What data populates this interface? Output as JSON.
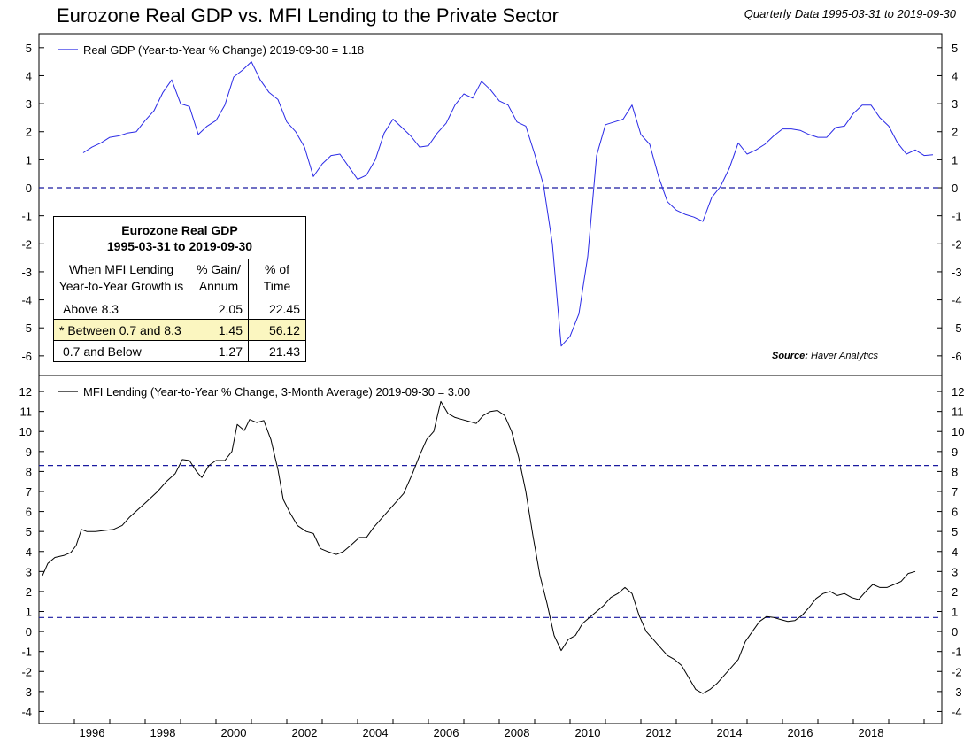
{
  "title": "Eurozone Real GDP vs. MFI Lending to the Private Sector",
  "subtitle": "Quarterly Data 1995-03-31 to 2019-09-30",
  "source": {
    "label": "Source:",
    "value": "Haver Analytics"
  },
  "colors": {
    "gdp_line": "#2a2ae6",
    "mfi_line": "#000000",
    "reference_line": "#1a1aa0"
  },
  "stats_table": {
    "title_line1": "Eurozone Real GDP",
    "title_line2": "1995-03-31 to 2019-09-30",
    "col1_line1": "When MFI Lending",
    "col1_line2": "Year-to-Year Growth is",
    "col2_line1": "% Gain/",
    "col2_line2": "Annum",
    "col3_line1": "% of",
    "col3_line2": "Time",
    "rows": [
      {
        "label": "Above 8.3",
        "gain": "2.05",
        "time": "22.45",
        "highlight": false
      },
      {
        "label": "* Between 0.7 and 8.3",
        "gain": "1.45",
        "time": "56.12",
        "highlight": true
      },
      {
        "label": "0.7 and Below",
        "gain": "1.27",
        "time": "21.43",
        "highlight": false
      }
    ]
  },
  "chart_data": [
    {
      "type": "line",
      "legend": "Real GDP (Year-to-Year % Change) 2019-09-30 = 1.18",
      "legend_position": "top-left",
      "ylim": [
        -6.7,
        5.5
      ],
      "yticks": [
        "5",
        "4",
        "3",
        "2",
        "1",
        "0",
        "-1",
        "-2",
        "-3",
        "-4",
        "-5",
        "-6"
      ],
      "reference_lines": [
        0
      ],
      "series": [
        {
          "values": [
            [
              1996.25,
              1.25
            ],
            [
              1996.5,
              1.45
            ],
            [
              1996.75,
              1.6
            ],
            [
              1997.0,
              1.8
            ],
            [
              1997.25,
              1.85
            ],
            [
              1997.5,
              1.95
            ],
            [
              1997.75,
              2.0
            ],
            [
              1998.0,
              2.4
            ],
            [
              1998.25,
              2.75
            ],
            [
              1998.5,
              3.4
            ],
            [
              1998.75,
              3.85
            ],
            [
              1999.0,
              3.0
            ],
            [
              1999.25,
              2.9
            ],
            [
              1999.5,
              1.9
            ],
            [
              1999.75,
              2.2
            ],
            [
              2000.0,
              2.4
            ],
            [
              2000.25,
              2.95
            ],
            [
              2000.5,
              3.95
            ],
            [
              2000.75,
              4.2
            ],
            [
              2001.0,
              4.5
            ],
            [
              2001.25,
              3.85
            ],
            [
              2001.5,
              3.4
            ],
            [
              2001.75,
              3.15
            ],
            [
              2002.0,
              2.35
            ],
            [
              2002.25,
              2.0
            ],
            [
              2002.5,
              1.45
            ],
            [
              2002.75,
              0.4
            ],
            [
              2003.0,
              0.85
            ],
            [
              2003.25,
              1.15
            ],
            [
              2003.5,
              1.2
            ],
            [
              2003.75,
              0.75
            ],
            [
              2004.0,
              0.3
            ],
            [
              2004.25,
              0.45
            ],
            [
              2004.5,
              1.0
            ],
            [
              2004.75,
              1.95
            ],
            [
              2005.0,
              2.45
            ],
            [
              2005.25,
              2.15
            ],
            [
              2005.5,
              1.85
            ],
            [
              2005.75,
              1.45
            ],
            [
              2006.0,
              1.5
            ],
            [
              2006.25,
              1.95
            ],
            [
              2006.5,
              2.3
            ],
            [
              2006.75,
              2.95
            ],
            [
              2007.0,
              3.35
            ],
            [
              2007.25,
              3.2
            ],
            [
              2007.5,
              3.8
            ],
            [
              2007.75,
              3.5
            ],
            [
              2008.0,
              3.1
            ],
            [
              2008.25,
              2.95
            ],
            [
              2008.5,
              2.35
            ],
            [
              2008.75,
              2.2
            ],
            [
              2009.0,
              1.2
            ],
            [
              2009.25,
              0.1
            ],
            [
              2009.5,
              -2.0
            ],
            [
              2009.75,
              -5.65
            ],
            [
              2010.0,
              -5.3
            ],
            [
              2010.25,
              -4.5
            ],
            [
              2010.5,
              -2.45
            ],
            [
              2010.75,
              1.15
            ],
            [
              2011.0,
              2.25
            ],
            [
              2011.25,
              2.35
            ],
            [
              2011.5,
              2.45
            ],
            [
              2011.75,
              2.95
            ],
            [
              2012.0,
              1.9
            ],
            [
              2012.25,
              1.55
            ],
            [
              2012.5,
              0.4
            ],
            [
              2012.75,
              -0.5
            ],
            [
              2013.0,
              -0.8
            ],
            [
              2013.25,
              -0.95
            ],
            [
              2013.5,
              -1.05
            ],
            [
              2013.75,
              -1.2
            ],
            [
              2014.0,
              -0.35
            ],
            [
              2014.25,
              0.05
            ],
            [
              2014.5,
              0.7
            ],
            [
              2014.75,
              1.6
            ],
            [
              2015.0,
              1.2
            ],
            [
              2015.25,
              1.35
            ],
            [
              2015.5,
              1.55
            ],
            [
              2015.75,
              1.85
            ],
            [
              2016.0,
              2.1
            ],
            [
              2016.25,
              2.1
            ],
            [
              2016.5,
              2.05
            ],
            [
              2016.75,
              1.9
            ],
            [
              2017.0,
              1.8
            ],
            [
              2017.25,
              1.8
            ],
            [
              2017.5,
              2.15
            ],
            [
              2017.75,
              2.2
            ],
            [
              2018.0,
              2.65
            ],
            [
              2018.25,
              2.95
            ],
            [
              2018.5,
              2.95
            ],
            [
              2018.75,
              2.5
            ],
            [
              2019.0,
              2.2
            ],
            [
              2019.25,
              1.6
            ],
            [
              2019.5,
              1.2
            ],
            [
              2019.75,
              1.35
            ],
            [
              2020.0,
              1.15
            ],
            [
              2020.25,
              1.18
            ]
          ]
        }
      ]
    },
    {
      "type": "line",
      "legend": "MFI Lending (Year-to-Year % Change, 3-Month Average) 2019-09-30 = 3.00",
      "legend_position": "top-left",
      "ylim": [
        -4.6,
        12.8
      ],
      "yticks": [
        "12",
        "11",
        "10",
        "9",
        "8",
        "7",
        "6",
        "5",
        "4",
        "3",
        "2",
        "1",
        "0",
        "-1",
        "-2",
        "-3",
        "-4"
      ],
      "reference_lines": [
        8.3,
        0.7
      ],
      "xlim": [
        1995.0,
        2020.5
      ],
      "xticks": [
        "1996",
        "1998",
        "2000",
        "2002",
        "2004",
        "2006",
        "2008",
        "2010",
        "2012",
        "2014",
        "2016",
        "2018"
      ],
      "series": [
        {
          "values": [
            [
              1995.1,
              2.8
            ],
            [
              1995.25,
              3.4
            ],
            [
              1995.45,
              3.7
            ],
            [
              1995.7,
              3.8
            ],
            [
              1995.9,
              3.95
            ],
            [
              1996.05,
              4.3
            ],
            [
              1996.2,
              5.1
            ],
            [
              1996.35,
              5.0
            ],
            [
              1996.6,
              5.0
            ],
            [
              1996.85,
              5.05
            ],
            [
              1997.1,
              5.1
            ],
            [
              1997.35,
              5.3
            ],
            [
              1997.55,
              5.7
            ],
            [
              1997.8,
              6.1
            ],
            [
              1998.05,
              6.5
            ],
            [
              1998.35,
              7.0
            ],
            [
              1998.6,
              7.5
            ],
            [
              1998.85,
              7.9
            ],
            [
              1999.05,
              8.6
            ],
            [
              1999.25,
              8.55
            ],
            [
              1999.45,
              8.0
            ],
            [
              1999.6,
              7.7
            ],
            [
              1999.8,
              8.3
            ],
            [
              2000.0,
              8.55
            ],
            [
              2000.25,
              8.55
            ],
            [
              2000.45,
              9.0
            ],
            [
              2000.6,
              10.35
            ],
            [
              2000.8,
              10.05
            ],
            [
              2000.95,
              10.6
            ],
            [
              2001.15,
              10.45
            ],
            [
              2001.35,
              10.55
            ],
            [
              2001.55,
              9.6
            ],
            [
              2001.75,
              8.1
            ],
            [
              2001.9,
              6.6
            ],
            [
              2002.1,
              5.9
            ],
            [
              2002.3,
              5.3
            ],
            [
              2002.55,
              5.0
            ],
            [
              2002.75,
              4.9
            ],
            [
              2002.95,
              4.15
            ],
            [
              2003.15,
              4.0
            ],
            [
              2003.4,
              3.85
            ],
            [
              2003.6,
              4.0
            ],
            [
              2003.8,
              4.3
            ],
            [
              2004.05,
              4.7
            ],
            [
              2004.25,
              4.7
            ],
            [
              2004.45,
              5.2
            ],
            [
              2004.65,
              5.6
            ],
            [
              2004.85,
              6.0
            ],
            [
              2005.1,
              6.5
            ],
            [
              2005.3,
              6.9
            ],
            [
              2005.55,
              7.9
            ],
            [
              2005.75,
              8.8
            ],
            [
              2005.95,
              9.6
            ],
            [
              2006.15,
              10.0
            ],
            [
              2006.35,
              11.5
            ],
            [
              2006.55,
              10.9
            ],
            [
              2006.75,
              10.7
            ],
            [
              2006.95,
              10.6
            ],
            [
              2007.15,
              10.5
            ],
            [
              2007.35,
              10.4
            ],
            [
              2007.55,
              10.8
            ],
            [
              2007.75,
              11.0
            ],
            [
              2007.95,
              11.05
            ],
            [
              2008.15,
              10.8
            ],
            [
              2008.35,
              10.0
            ],
            [
              2008.55,
              8.7
            ],
            [
              2008.75,
              7.0
            ],
            [
              2008.95,
              4.8
            ],
            [
              2009.15,
              2.8
            ],
            [
              2009.35,
              1.4
            ],
            [
              2009.55,
              -0.2
            ],
            [
              2009.75,
              -0.95
            ],
            [
              2009.95,
              -0.4
            ],
            [
              2010.15,
              -0.2
            ],
            [
              2010.35,
              0.4
            ],
            [
              2010.55,
              0.7
            ],
            [
              2010.75,
              1.0
            ],
            [
              2010.95,
              1.3
            ],
            [
              2011.15,
              1.7
            ],
            [
              2011.35,
              1.9
            ],
            [
              2011.55,
              2.2
            ],
            [
              2011.75,
              1.9
            ],
            [
              2011.95,
              0.8
            ],
            [
              2012.15,
              0.0
            ],
            [
              2012.35,
              -0.4
            ],
            [
              2012.55,
              -0.8
            ],
            [
              2012.75,
              -1.2
            ],
            [
              2012.95,
              -1.4
            ],
            [
              2013.15,
              -1.7
            ],
            [
              2013.35,
              -2.3
            ],
            [
              2013.55,
              -2.9
            ],
            [
              2013.75,
              -3.1
            ],
            [
              2013.95,
              -2.9
            ],
            [
              2014.15,
              -2.6
            ],
            [
              2014.35,
              -2.2
            ],
            [
              2014.55,
              -1.8
            ],
            [
              2014.75,
              -1.4
            ],
            [
              2014.95,
              -0.5
            ],
            [
              2015.15,
              0.0
            ],
            [
              2015.35,
              0.5
            ],
            [
              2015.55,
              0.75
            ],
            [
              2015.75,
              0.7
            ],
            [
              2015.95,
              0.6
            ],
            [
              2016.15,
              0.5
            ],
            [
              2016.35,
              0.55
            ],
            [
              2016.55,
              0.8
            ],
            [
              2016.75,
              1.2
            ],
            [
              2016.95,
              1.65
            ],
            [
              2017.15,
              1.9
            ],
            [
              2017.35,
              2.0
            ],
            [
              2017.55,
              1.8
            ],
            [
              2017.75,
              1.9
            ],
            [
              2017.95,
              1.7
            ],
            [
              2018.15,
              1.6
            ],
            [
              2018.35,
              2.0
            ],
            [
              2018.55,
              2.35
            ],
            [
              2018.75,
              2.2
            ],
            [
              2018.95,
              2.2
            ],
            [
              2019.15,
              2.35
            ],
            [
              2019.35,
              2.5
            ],
            [
              2019.55,
              2.9
            ],
            [
              2019.75,
              3.0
            ]
          ]
        }
      ]
    }
  ]
}
